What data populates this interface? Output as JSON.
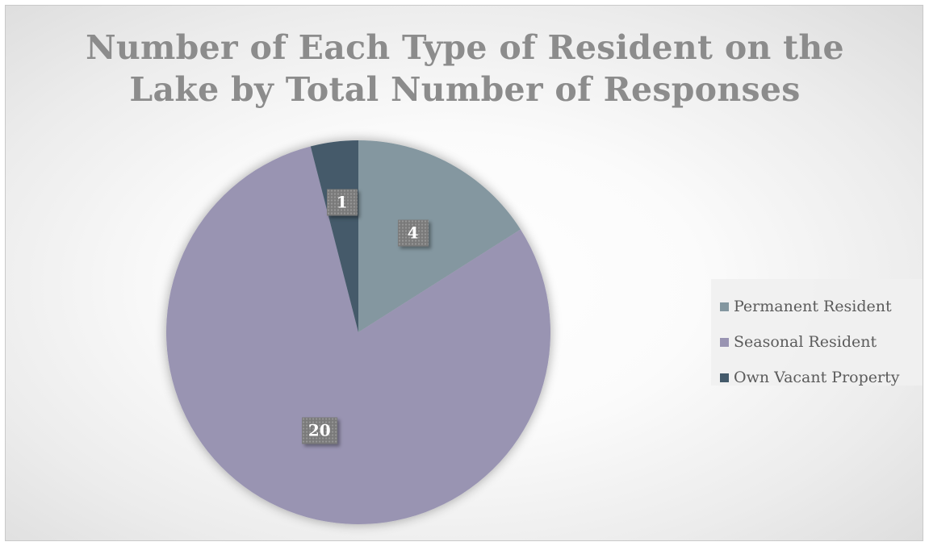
{
  "chart_data": {
    "type": "pie",
    "title_lines": [
      "Number of Each Type of Resident on the",
      "Lake by Total Number of Responses"
    ],
    "categories": [
      "Permanent Resident",
      "Seasonal Resident",
      "Own Vacant Property"
    ],
    "values": [
      4,
      20,
      1
    ],
    "data_labels": [
      "4",
      "20",
      "1"
    ],
    "colors": [
      "#8497a0",
      "#9994b2",
      "#445a6b"
    ],
    "legend_placement": "right",
    "start_angle": "12 o'clock",
    "direction": "clockwise"
  }
}
